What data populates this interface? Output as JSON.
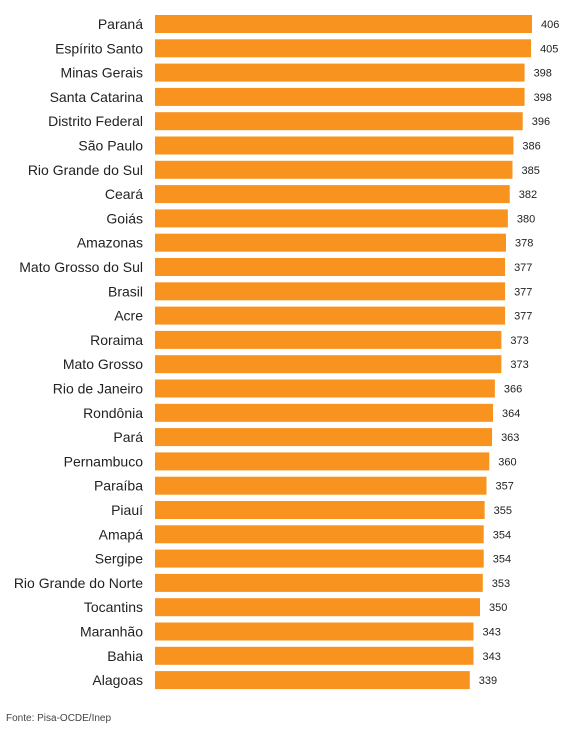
{
  "chart_data": {
    "type": "bar",
    "orientation": "horizontal",
    "categories": [
      "Paraná",
      "Espírito Santo",
      "Minas Gerais",
      "Santa Catarina",
      "Distrito Federal",
      "São Paulo",
      "Rio Grande do Sul",
      "Ceará",
      "Goiás",
      "Amazonas",
      "Mato Grosso do Sul",
      "Brasil",
      "Acre",
      "Roraima",
      "Mato Grosso",
      "Rio de Janeiro",
      "Rondônia",
      "Pará",
      "Pernambuco",
      "Paraíba",
      "Piauí",
      "Amapá",
      "Sergipe",
      "Rio Grande do Norte",
      "Tocantins",
      "Maranhão",
      "Bahia",
      "Alagoas"
    ],
    "values": [
      406,
      405,
      398,
      398,
      396,
      386,
      385,
      382,
      380,
      378,
      377,
      377,
      377,
      373,
      373,
      366,
      364,
      363,
      360,
      357,
      355,
      354,
      354,
      353,
      350,
      343,
      343,
      339
    ],
    "xlim": [
      0,
      406
    ],
    "grid": false,
    "legend": "none"
  },
  "colors": {
    "bar": "#F7931E",
    "text": "#222222"
  },
  "source": "Fonte: Pisa-OCDE/Inep"
}
